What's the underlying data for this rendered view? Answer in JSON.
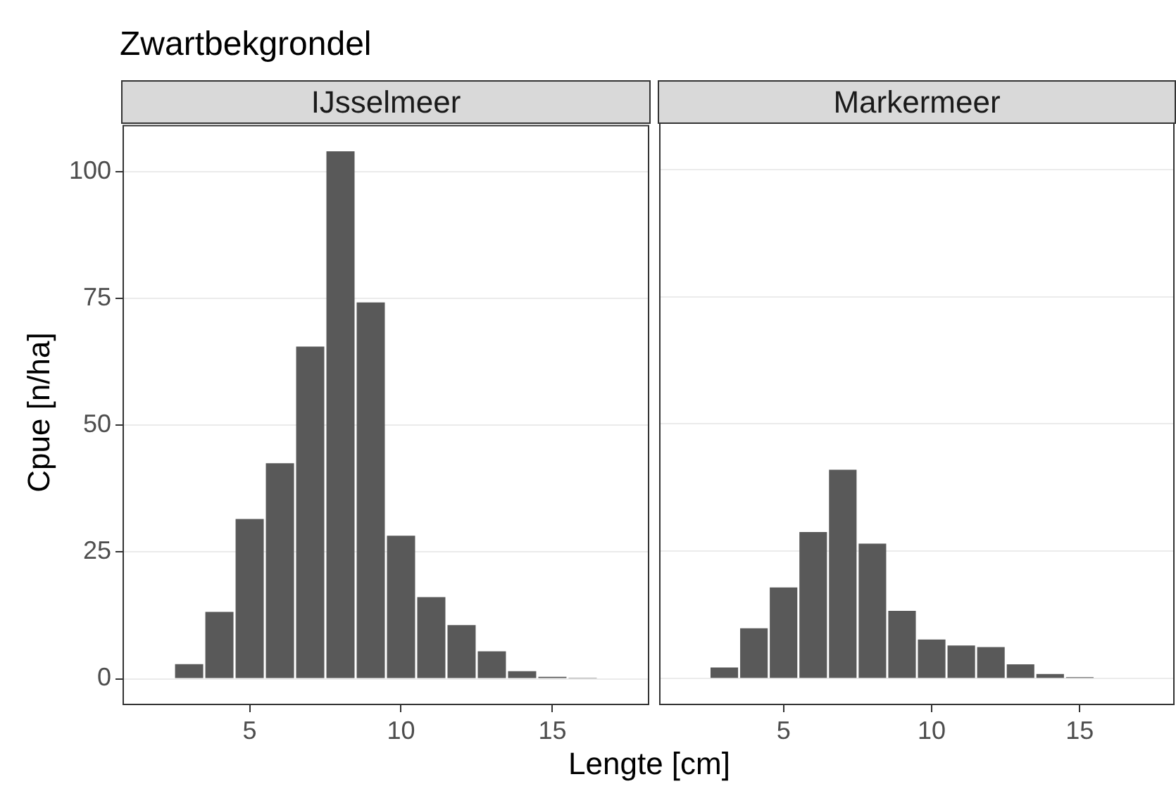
{
  "chart_data": [
    {
      "type": "histogram",
      "title": "IJsselmeer",
      "annotations": [
        "Zwartbekgrondel"
      ],
      "xlabel": "Lengte [cm]",
      "ylabel": "Cpue [n/ha]",
      "color": "#595959",
      "bins": [
        2.5,
        3.5,
        4.5,
        5.5,
        6.5,
        7.5,
        8.5,
        9.5,
        10.5,
        11.5,
        12.5,
        13.5,
        14.5,
        15.5,
        16.5
      ],
      "values": [
        2.9,
        13.2,
        31.5,
        42.5,
        65.5,
        104,
        74.2,
        28.2,
        16.1,
        10.6,
        5.4,
        1.5,
        0.4,
        0.2
      ],
      "xlim": [
        0.8,
        18.2
      ],
      "xticks": [
        5,
        10,
        15
      ],
      "ylim": [
        -5.2,
        109.2
      ],
      "yticks": [
        0,
        25,
        50,
        75,
        100
      ],
      "grid": "y"
    },
    {
      "type": "histogram",
      "title": "Markermeer",
      "color": "#595959",
      "bins": [
        2.5,
        3.5,
        4.5,
        5.5,
        6.5,
        7.5,
        8.5,
        9.5,
        10.5,
        11.5,
        12.5,
        13.5,
        14.5,
        15.5
      ],
      "values": [
        2.2,
        9.9,
        17.9,
        28.8,
        41.0,
        26.5,
        13.3,
        7.7,
        6.5,
        6.2,
        2.8,
        0.9,
        0.3
      ],
      "xlim": [
        0.8,
        18.2
      ],
      "xticks": [
        5,
        10,
        15
      ],
      "ylim": [
        -5.2,
        109.2
      ],
      "yticks": [
        0,
        25,
        50,
        75,
        100
      ],
      "grid": "y",
      "tick_labels": "x"
    }
  ]
}
